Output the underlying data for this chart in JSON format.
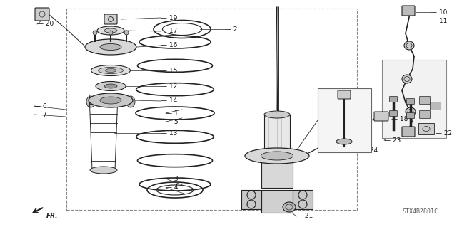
{
  "bg_color": "#ffffff",
  "border_color": "#888888",
  "line_color": "#222222",
  "label_color": "#111111",
  "watermark": "STX4B2801C",
  "label_font_size": 6.5,
  "fig_w": 6.4,
  "fig_h": 3.19,
  "dpi": 100
}
